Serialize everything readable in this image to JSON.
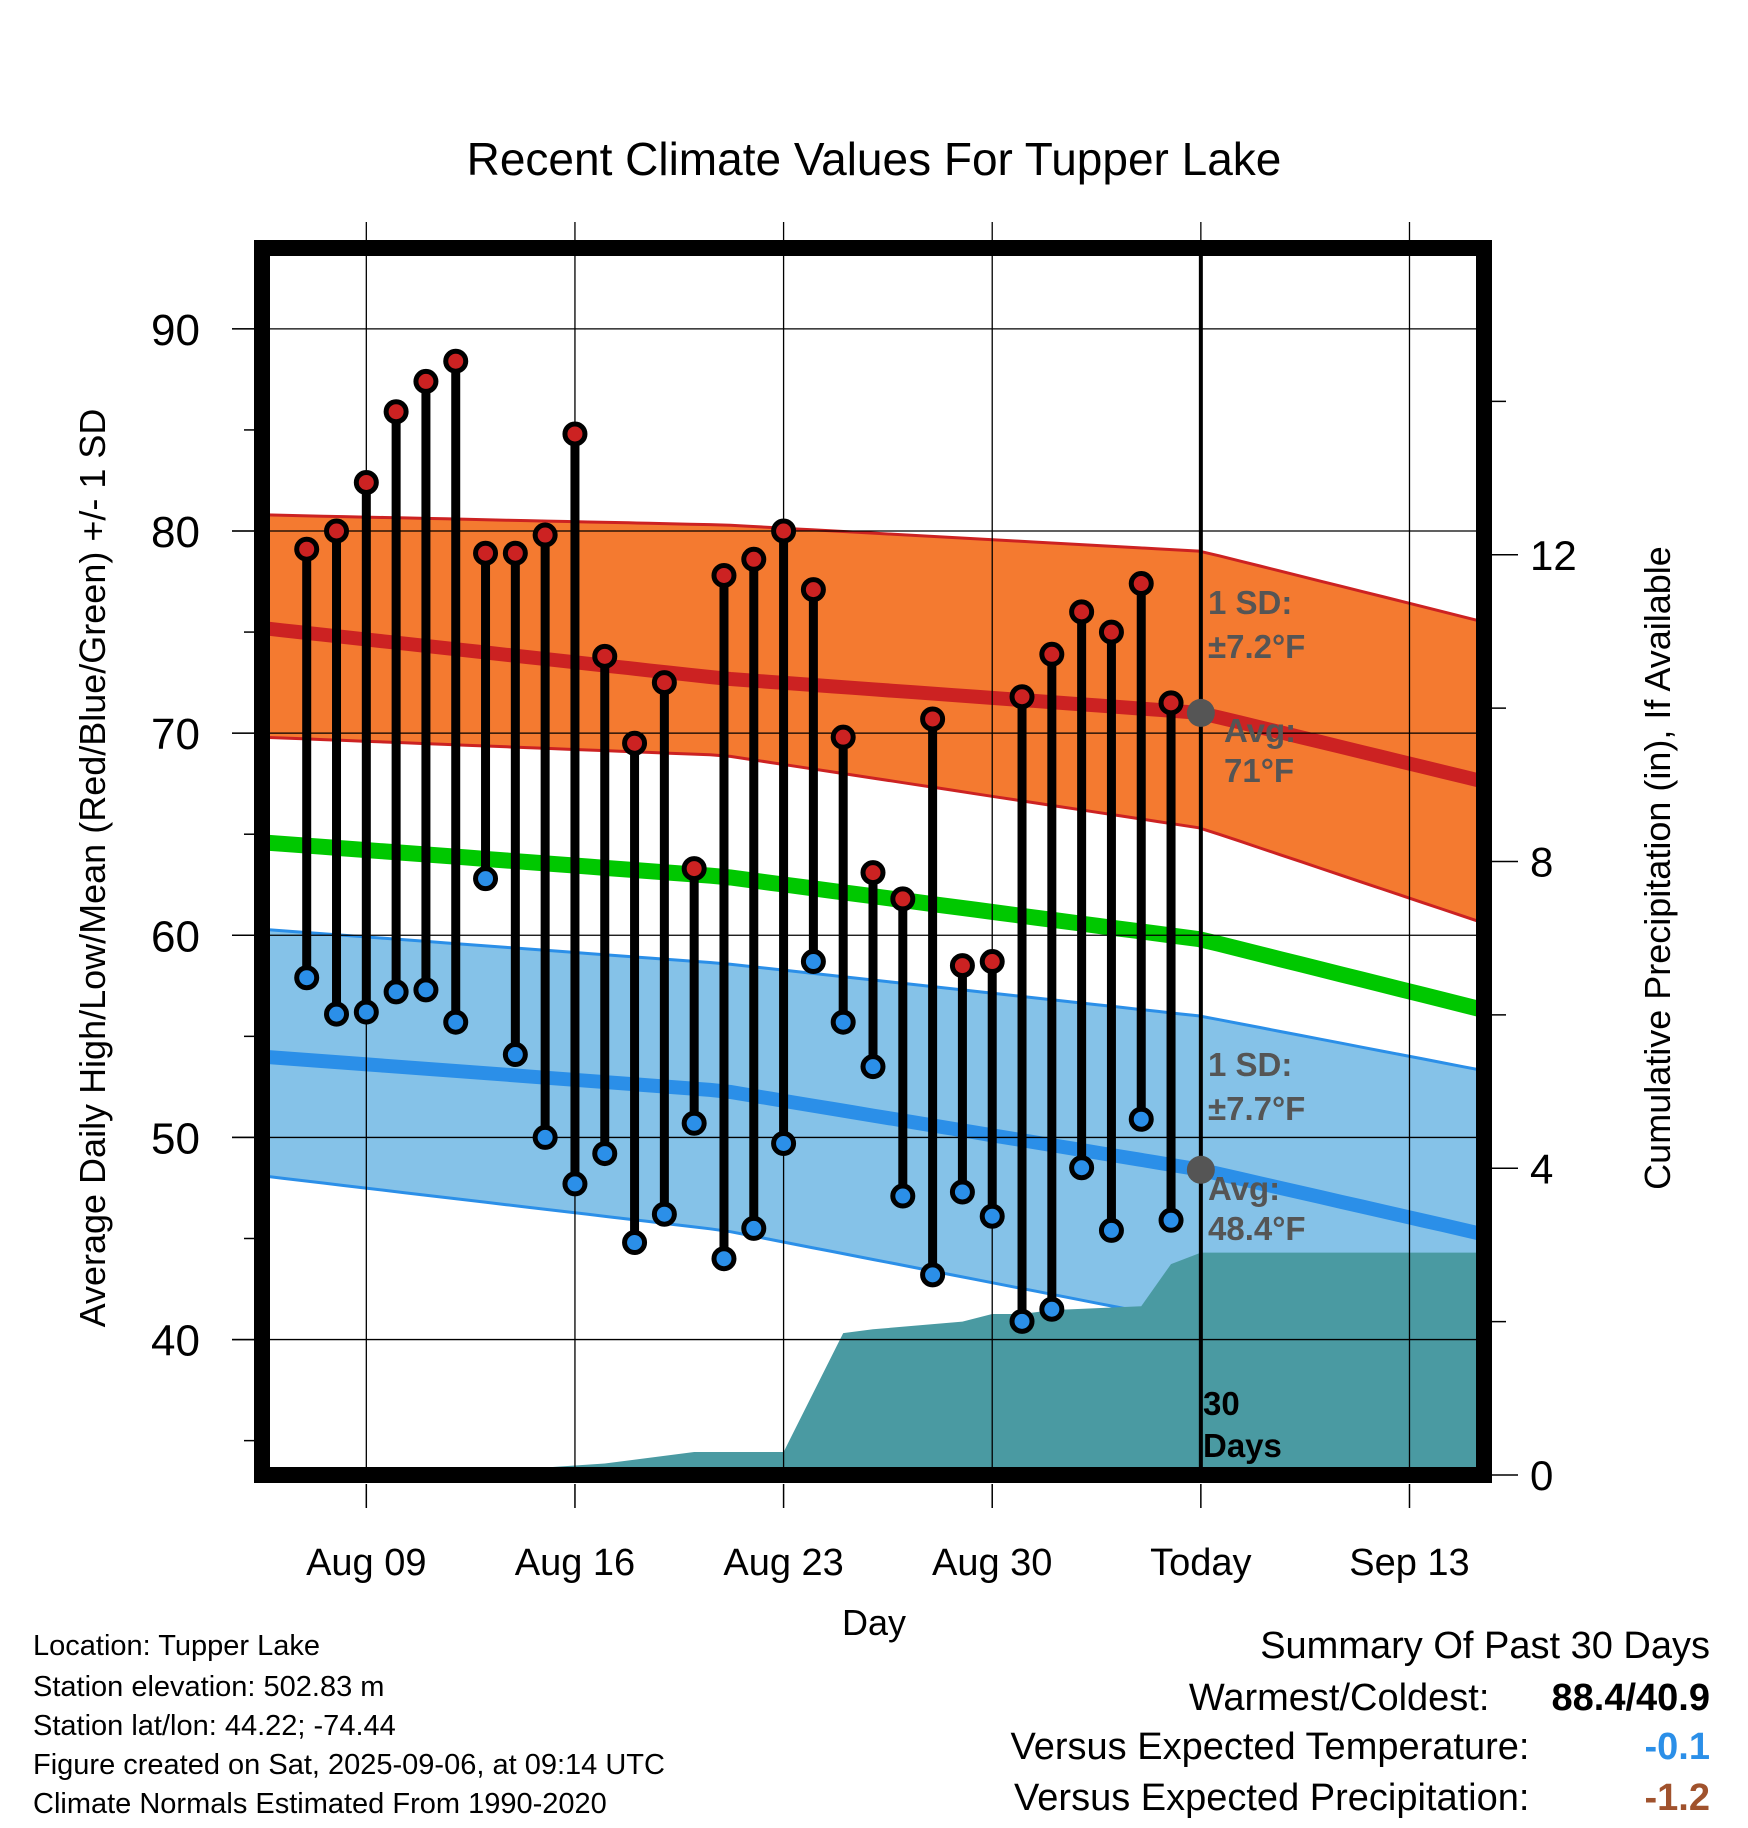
{
  "chart_data": {
    "type": "line",
    "title": "Recent Climate Values For Tupper Lake",
    "xlabel": "Day",
    "ylabel": "Average Daily High/Low/Mean (Red/Blue/Green) +/- 1 SD",
    "y2label": "Cumulative Precipitation (in), If Available",
    "x_ticks": [
      "Aug 09",
      "Aug 16",
      "Aug 23",
      "Aug 30",
      "Today",
      "Sep 13"
    ],
    "y_ticks": [
      40,
      50,
      60,
      70,
      80,
      90
    ],
    "y2_ticks": [
      0,
      4,
      8,
      12
    ],
    "xlim": [
      -3.5,
      37.5
    ],
    "ylim": [
      33.3,
      94
    ],
    "y2lim": [
      0,
      16
    ],
    "grid": true,
    "days": [
      "Aug 07",
      "Aug 08",
      "Aug 09",
      "Aug 10",
      "Aug 11",
      "Aug 12",
      "Aug 13",
      "Aug 14",
      "Aug 15",
      "Aug 16",
      "Aug 17",
      "Aug 18",
      "Aug 19",
      "Aug 20",
      "Aug 21",
      "Aug 22",
      "Aug 23",
      "Aug 24",
      "Aug 25",
      "Aug 26",
      "Aug 27",
      "Aug 28",
      "Aug 29",
      "Aug 30",
      "Aug 31",
      "Sep 01",
      "Sep 02",
      "Sep 03",
      "Sep 04",
      "Sep 05"
    ],
    "series": [
      {
        "name": "High",
        "color": "#cc2222",
        "values": [
          79.1,
          80.0,
          82.4,
          85.9,
          87.4,
          88.4,
          78.9,
          78.9,
          79.8,
          84.8,
          73.8,
          69.5,
          72.5,
          63.3,
          77.8,
          78.6,
          80.0,
          77.1,
          69.8,
          63.1,
          61.8,
          70.7,
          58.5,
          58.7,
          71.8,
          73.9,
          76.0,
          75.0,
          77.4,
          71.5
        ]
      },
      {
        "name": "Low",
        "color": "#2b8fe8",
        "values": [
          57.9,
          56.1,
          56.2,
          57.2,
          57.3,
          55.7,
          62.8,
          54.1,
          50.0,
          47.7,
          49.2,
          44.8,
          46.2,
          50.7,
          44.0,
          45.5,
          49.7,
          58.7,
          55.7,
          53.5,
          47.1,
          43.2,
          47.3,
          46.1,
          40.9,
          41.5,
          48.5,
          45.4,
          50.9,
          45.9
        ]
      }
    ],
    "normal_high_mean": [
      75.2,
      72.7,
      71.0,
      67.6
    ],
    "normal_high_upper": [
      80.8,
      80.3,
      79.0,
      75.5
    ],
    "normal_high_lower": [
      69.8,
      68.9,
      65.3,
      60.6
    ],
    "normal_low_mean": [
      54.0,
      52.3,
      48.4,
      45.2
    ],
    "normal_low_upper": [
      60.3,
      58.6,
      56.0,
      53.3
    ],
    "normal_low_lower": [
      48.1,
      45.4,
      40.8,
      37.0
    ],
    "normal_mean": [
      64.6,
      62.9,
      59.8,
      56.3
    ],
    "normal_x": [
      -3.5,
      12,
      28,
      37.5
    ],
    "precip_x": [
      -3.5,
      3,
      8,
      11,
      14,
      16,
      17,
      20,
      21,
      22,
      23,
      26,
      27,
      28,
      37.5
    ],
    "precip_values": [
      0,
      0.02,
      0.15,
      0.3,
      0.3,
      1.85,
      1.9,
      2.0,
      2.1,
      2.1,
      2.15,
      2.2,
      2.75,
      2.9,
      2.9
    ],
    "precip_color": "#4a9aa2",
    "high_band_color": "#f47a30",
    "low_band_color": "#85c2e8",
    "mean_line_color": "#00c800",
    "today_marker_high": 71,
    "today_marker_low": 48.4,
    "annotations": {
      "high_sd_label": "1 SD:",
      "high_sd_value": "±7.2°F",
      "high_avg_label": "Avg:",
      "high_avg_value": "71°F",
      "low_sd_label": "1 SD:",
      "low_sd_value": "±7.7°F",
      "low_avg_label": "Avg:",
      "low_avg_value": "48.4°F",
      "window_label_1": "30",
      "window_label_2": "Days"
    }
  },
  "metadata": {
    "location": "Location: Tupper Lake",
    "elevation": "Station elevation: 502.83 m",
    "latlon": "Station lat/lon: 44.22; -74.44",
    "created": "Figure created on Sat, 2025-09-06, at 09:14 UTC",
    "normals": "Climate Normals Estimated From 1990-2020"
  },
  "summary": {
    "title": "Summary Of Past 30 Days",
    "warm_cold_label": "Warmest/Coldest:",
    "warm_cold_value": "88.4/40.9",
    "temp_label": "Versus Expected Temperature:",
    "temp_value": "-0.1",
    "temp_color": "#2b8fe8",
    "precip_label": "Versus Expected Precipitation:",
    "precip_value": "-1.2",
    "precip_color": "#a0522d"
  }
}
